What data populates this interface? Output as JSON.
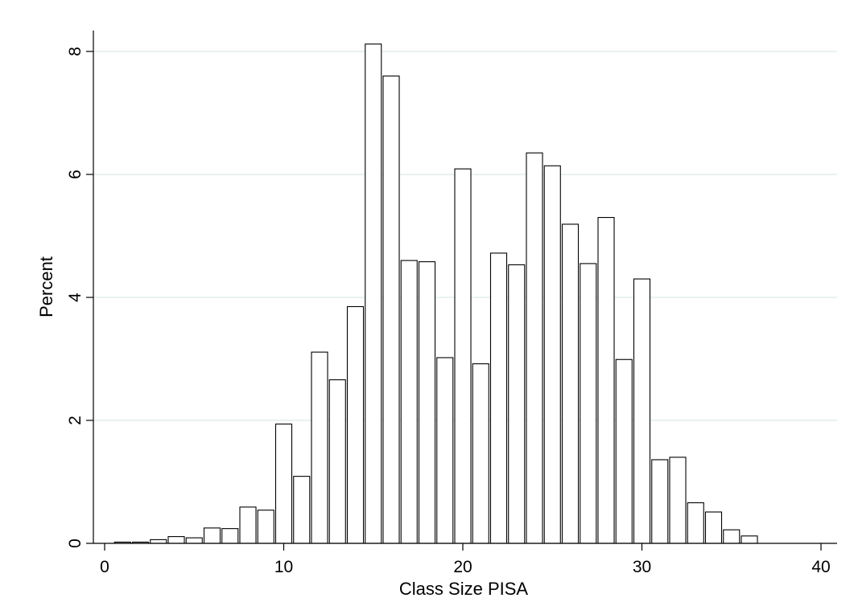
{
  "chart_data": {
    "type": "bar",
    "title": "",
    "xlabel": "Class Size PISA",
    "ylabel": "Percent",
    "xlim": [
      0,
      40
    ],
    "ylim": [
      0,
      8.4
    ],
    "xticks": [
      0,
      10,
      20,
      30,
      40
    ],
    "yticks": [
      0,
      2,
      4,
      6,
      8
    ],
    "grid": "horizontal",
    "bar_fill": "#ffffff",
    "bar_stroke": "#000000",
    "grid_color": "#d9ebeb",
    "bars": [
      {
        "x": 1,
        "value": 0.02
      },
      {
        "x": 2,
        "value": 0.02
      },
      {
        "x": 3,
        "value": 0.06
      },
      {
        "x": 4,
        "value": 0.11
      },
      {
        "x": 5,
        "value": 0.09
      },
      {
        "x": 6,
        "value": 0.25
      },
      {
        "x": 7,
        "value": 0.24
      },
      {
        "x": 8,
        "value": 0.59
      },
      {
        "x": 9,
        "value": 0.54
      },
      {
        "x": 10,
        "value": 1.94
      },
      {
        "x": 11,
        "value": 1.09
      },
      {
        "x": 12,
        "value": 3.11
      },
      {
        "x": 13,
        "value": 2.66
      },
      {
        "x": 14,
        "value": 3.85
      },
      {
        "x": 15,
        "value": 8.12
      },
      {
        "x": 16,
        "value": 7.6
      },
      {
        "x": 17,
        "value": 4.6
      },
      {
        "x": 18,
        "value": 4.58
      },
      {
        "x": 19,
        "value": 3.02
      },
      {
        "x": 20,
        "value": 6.09
      },
      {
        "x": 21,
        "value": 2.92
      },
      {
        "x": 22,
        "value": 4.72
      },
      {
        "x": 23,
        "value": 4.53
      },
      {
        "x": 24,
        "value": 6.35
      },
      {
        "x": 25,
        "value": 6.14
      },
      {
        "x": 26,
        "value": 5.19
      },
      {
        "x": 27,
        "value": 4.55
      },
      {
        "x": 28,
        "value": 5.3
      },
      {
        "x": 29,
        "value": 2.99
      },
      {
        "x": 30,
        "value": 4.3
      },
      {
        "x": 31,
        "value": 1.36
      },
      {
        "x": 32,
        "value": 1.4
      },
      {
        "x": 33,
        "value": 0.66
      },
      {
        "x": 34,
        "value": 0.51
      },
      {
        "x": 35,
        "value": 0.22
      },
      {
        "x": 36,
        "value": 0.12
      }
    ]
  }
}
